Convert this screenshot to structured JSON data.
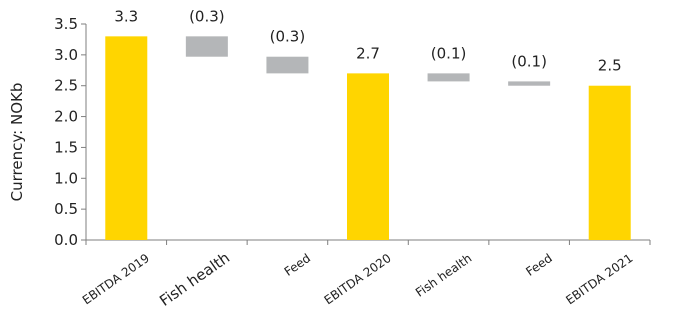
{
  "chart_data": {
    "type": "bar",
    "subtype": "waterfall",
    "ylabel": "Currency: NOKb",
    "ylim": [
      0,
      3.5
    ],
    "yticks": [
      "0.0",
      "0.5",
      "1.0",
      "1.5",
      "2.0",
      "2.5",
      "3.0",
      "3.5"
    ],
    "grid": false,
    "legend": "none",
    "colors": {
      "total": "#FFD500",
      "change": "#B4B6B8",
      "axis": "#7f7f7f"
    },
    "bars": [
      {
        "category": "EBITDA 2019",
        "kind": "total",
        "start": 0,
        "end": 3.3,
        "label": "3.3"
      },
      {
        "category": "Fish health",
        "kind": "change",
        "start": 3.3,
        "end": 2.97,
        "label": "(0.3)"
      },
      {
        "category": "Feed",
        "kind": "change",
        "start": 2.97,
        "end": 2.7,
        "label": "(0.3)"
      },
      {
        "category": "EBITDA 2020",
        "kind": "total",
        "start": 0,
        "end": 2.7,
        "label": "2.7"
      },
      {
        "category": "Fish health",
        "kind": "change",
        "start": 2.7,
        "end": 2.57,
        "label": "(0.1)"
      },
      {
        "category": "Feed",
        "kind": "change",
        "start": 2.57,
        "end": 2.5,
        "label": "(0.1)"
      },
      {
        "category": "EBITDA 2021",
        "kind": "total",
        "start": 0,
        "end": 2.5,
        "label": "2.5"
      }
    ]
  }
}
